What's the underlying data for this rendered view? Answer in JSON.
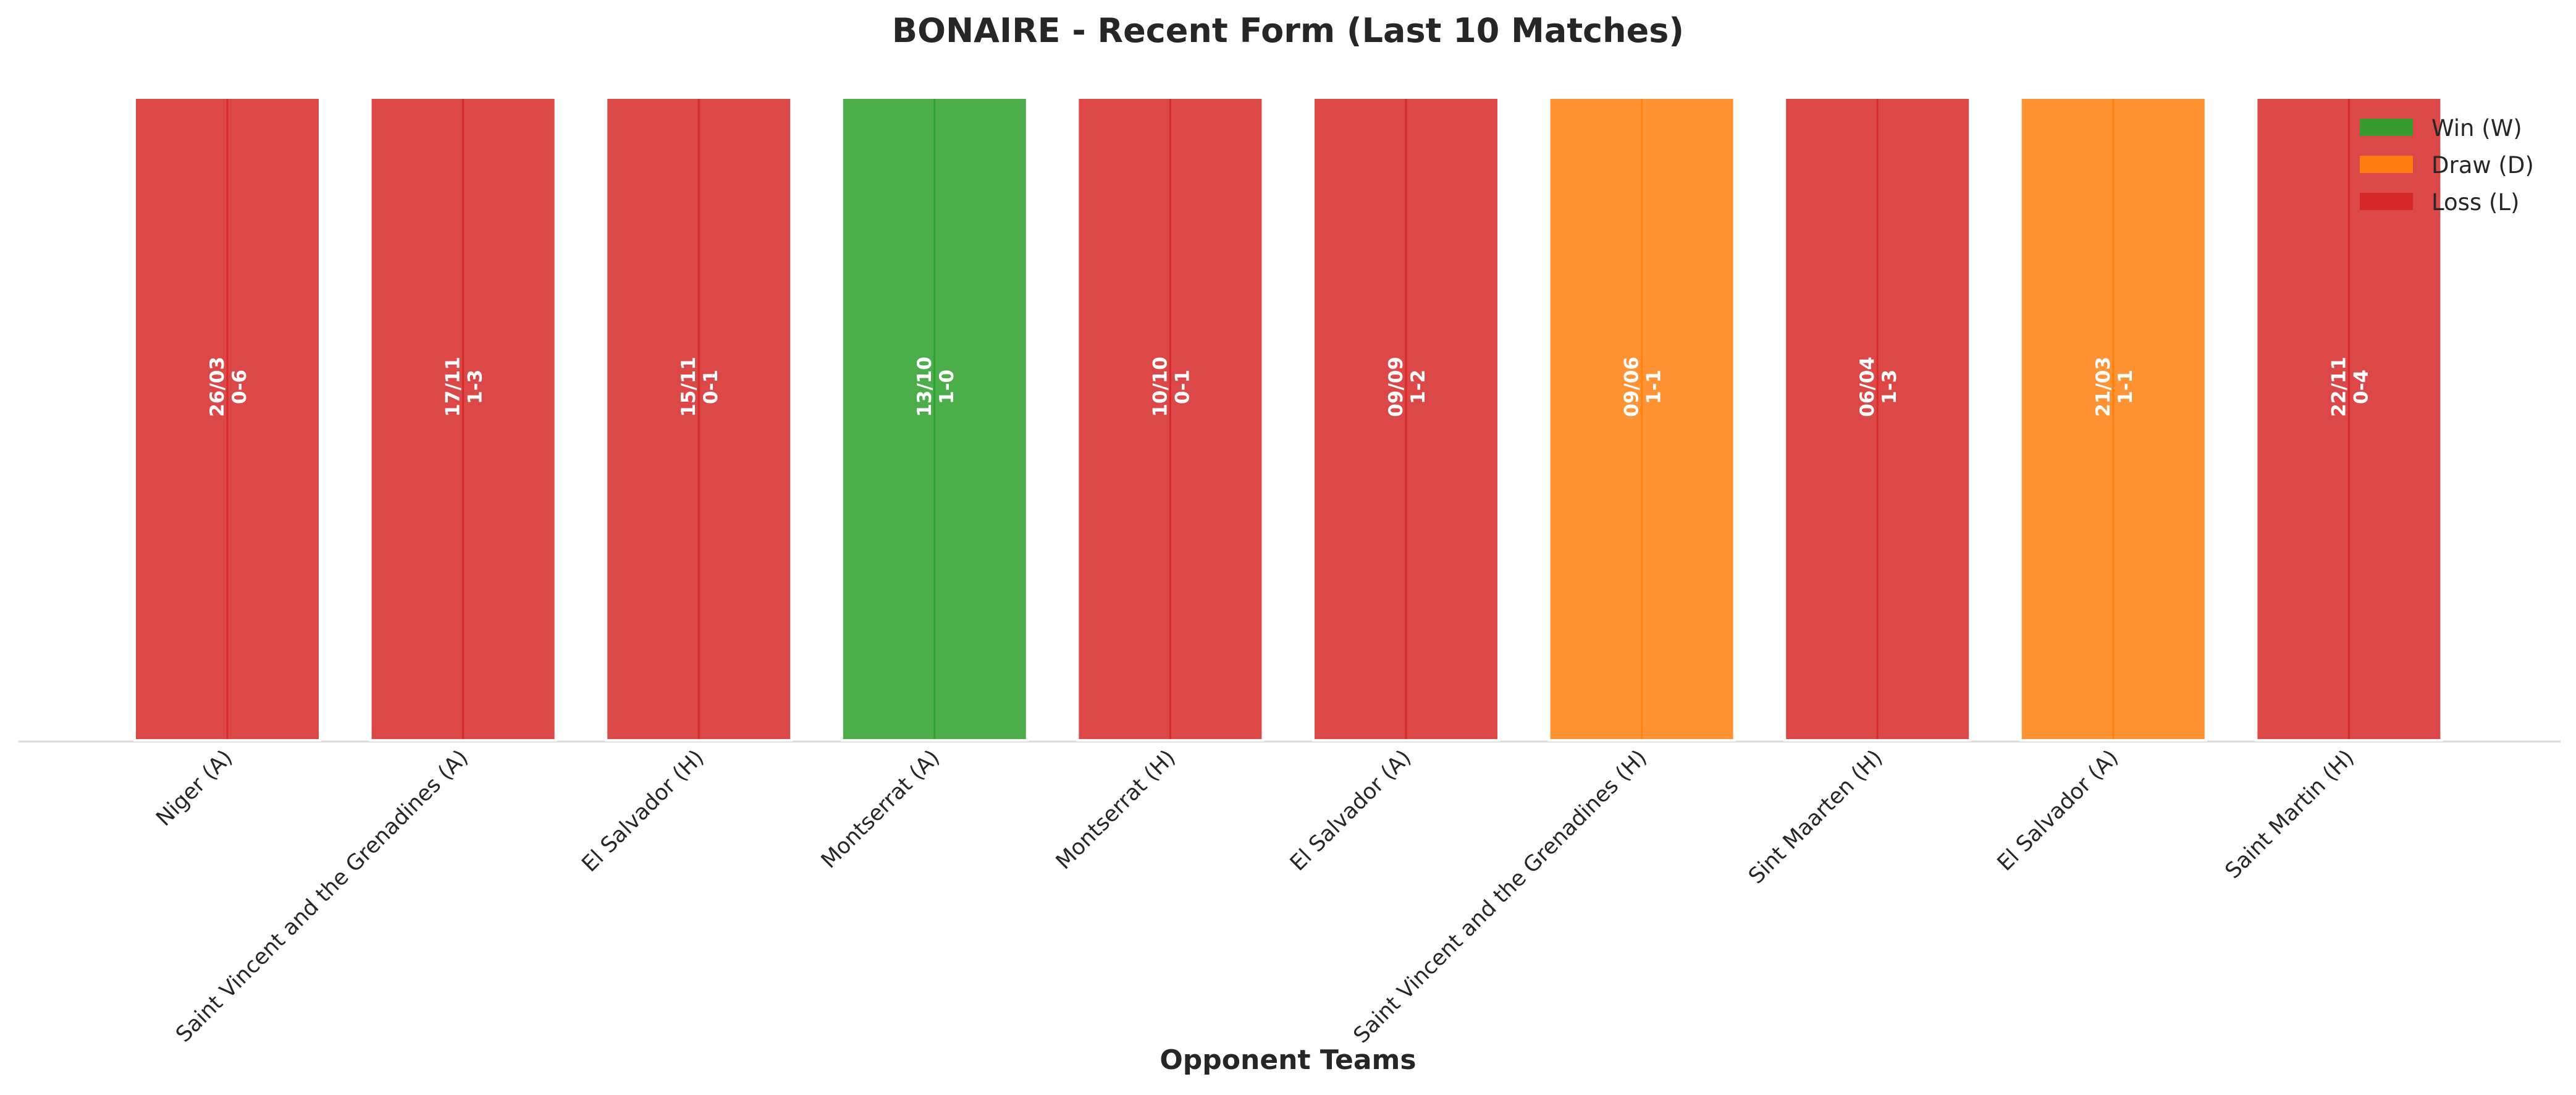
{
  "chart_data": {
    "type": "bar",
    "title": "BONAIRE - Recent Form (Last 10 Matches)",
    "xlabel": "Opponent Teams",
    "ylabel": "",
    "categories": [
      "Niger (A)",
      "Saint Vincent and the Grenadines (A)",
      "El Salvador (H)",
      "Montserrat (A)",
      "Montserrat (H)",
      "El Salvador (A)",
      "Saint Vincent and the Grenadines (H)",
      "Sint Maarten (H)",
      "El Salvador (A)",
      "Saint Martin (H)"
    ],
    "values": [
      1,
      1,
      1,
      1,
      1,
      1,
      1,
      1,
      1,
      1
    ],
    "results": [
      "L",
      "L",
      "L",
      "W",
      "L",
      "L",
      "D",
      "L",
      "D",
      "L"
    ],
    "dates": [
      "26/03",
      "17/11",
      "15/11",
      "13/10",
      "10/10",
      "09/09",
      "09/06",
      "06/04",
      "21/03",
      "22/11"
    ],
    "scores": [
      "0-6",
      "1-3",
      "0-1",
      "1-0",
      "0-1",
      "1-2",
      "1-1",
      "1-3",
      "1-1",
      "0-4"
    ],
    "ylim": [
      0,
      1
    ],
    "grid": false,
    "legend_position": "top-right",
    "legend": [
      {
        "key": "W",
        "label": "Win (W)",
        "color": "#2ca02c"
      },
      {
        "key": "D",
        "label": "Draw (D)",
        "color": "#ff7f0e"
      },
      {
        "key": "L",
        "label": "Loss (L)",
        "color": "#d62728"
      }
    ]
  }
}
